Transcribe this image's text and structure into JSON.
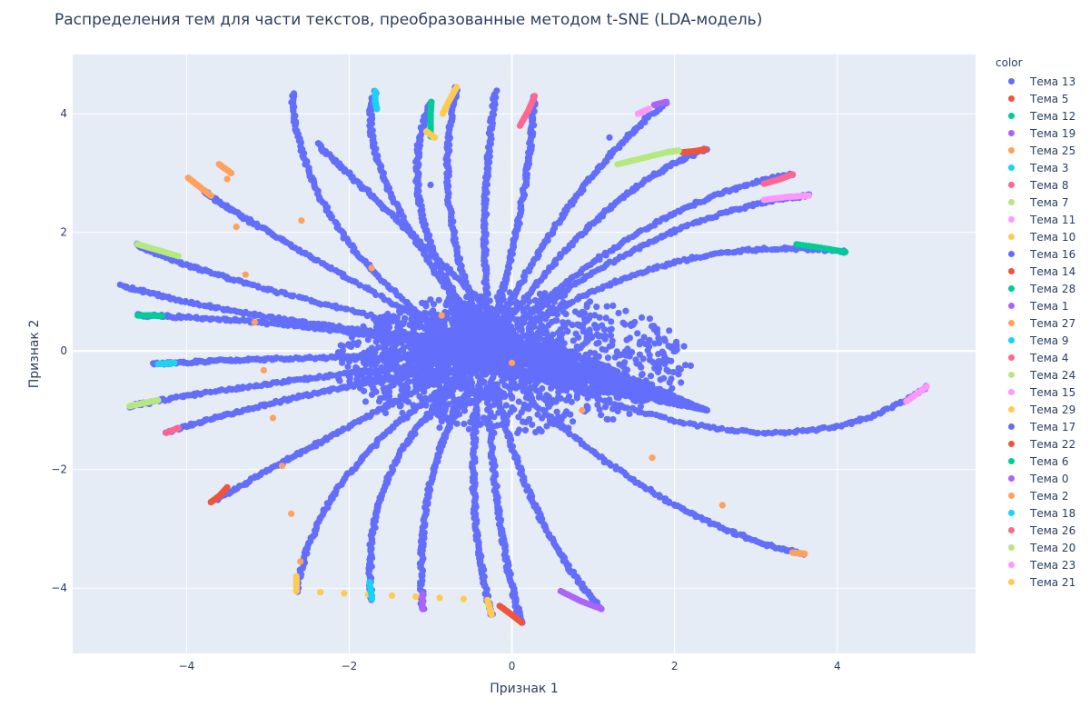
{
  "chart_data": {
    "type": "scatter",
    "title": "Распределения тем для части текстов, преобразованные методом t-SNE (LDA-модель)",
    "xlabel": "Признак 1",
    "ylabel": "Признак 2",
    "xlim": [
      -5.4,
      5.7
    ],
    "ylim": [
      -5.1,
      5.0
    ],
    "x_ticks": [
      -4,
      -2,
      0,
      2,
      4
    ],
    "y_ticks": [
      -4,
      -2,
      0,
      2,
      4
    ],
    "grid": true,
    "legend_title": "color",
    "legend_position": "right",
    "series": [
      {
        "name": "Тема 13",
        "color": "#636efa",
        "description": "dominant cluster: dense core near origin with many radiating arcs"
      },
      {
        "name": "Тема 5",
        "color": "#EF553B",
        "points": [
          [
            2.1,
            3.35
          ],
          [
            2.25,
            3.37
          ],
          [
            2.38,
            3.4
          ]
        ]
      },
      {
        "name": "Тема 12",
        "color": "#00cc96",
        "points": [
          [
            -0.99,
            4.2
          ],
          [
            -1.0,
            4.0
          ],
          [
            -1.0,
            3.8
          ],
          [
            -1.0,
            3.62
          ]
        ]
      },
      {
        "name": "Тема 19",
        "color": "#ab63fa",
        "points": [
          [
            1.75,
            4.15
          ],
          [
            1.9,
            4.2
          ]
        ]
      },
      {
        "name": "Тема 25",
        "color": "#FFA15A",
        "points": [
          [
            -3.98,
            2.92
          ],
          [
            -3.85,
            2.78
          ],
          [
            -3.7,
            2.62
          ]
        ]
      },
      {
        "name": "Тема 3",
        "color": "#19d3f3",
        "points": [
          [
            -1.68,
            4.38
          ],
          [
            -1.68,
            4.2
          ],
          [
            -1.66,
            4.08
          ]
        ]
      },
      {
        "name": "Тема 8",
        "color": "#FF6692",
        "points": [
          [
            0.28,
            4.3
          ],
          [
            0.2,
            4.05
          ],
          [
            0.1,
            3.8
          ]
        ]
      },
      {
        "name": "Тема 7",
        "color": "#B6E880",
        "points": [
          [
            1.3,
            3.15
          ],
          [
            1.6,
            3.25
          ],
          [
            1.9,
            3.35
          ],
          [
            2.05,
            3.38
          ]
        ]
      },
      {
        "name": "Тема 11",
        "color": "#FF97FF",
        "points": [
          [
            1.55,
            4.0
          ],
          [
            1.68,
            4.08
          ]
        ]
      },
      {
        "name": "Тема 10",
        "color": "#FECB52",
        "points": [
          [
            -0.68,
            4.45
          ],
          [
            -0.78,
            4.2
          ],
          [
            -0.85,
            4.0
          ]
        ]
      },
      {
        "name": "Тема 16",
        "color": "#636efa",
        "points": [
          [
            -1.0,
            2.8
          ]
        ]
      },
      {
        "name": "Тема 14",
        "color": "#EF553B",
        "points": [
          [
            -3.7,
            -2.55
          ],
          [
            -3.6,
            -2.45
          ],
          [
            -3.5,
            -2.3
          ]
        ]
      },
      {
        "name": "Тема 28",
        "color": "#00cc96",
        "points": [
          [
            3.5,
            1.8
          ],
          [
            3.8,
            1.74
          ],
          [
            4.1,
            1.67
          ]
        ]
      },
      {
        "name": "Тема 1",
        "color": "#ab63fa",
        "points": [
          [
            0.6,
            -4.05
          ],
          [
            0.85,
            -4.22
          ],
          [
            1.1,
            -4.35
          ]
        ]
      },
      {
        "name": "Тема 27",
        "color": "#FFA15A",
        "points": [
          [
            -3.6,
            3.15
          ],
          [
            -3.45,
            3.0
          ],
          [
            3.45,
            -3.4
          ],
          [
            3.6,
            -3.42
          ]
        ]
      },
      {
        "name": "Тема 9",
        "color": "#19d3f3",
        "points": [
          [
            -4.35,
            -0.22
          ],
          [
            -4.15,
            -0.2
          ]
        ]
      },
      {
        "name": "Тема 4",
        "color": "#FF6692",
        "points": [
          [
            3.1,
            2.82
          ],
          [
            3.3,
            2.9
          ],
          [
            3.45,
            2.98
          ]
        ]
      },
      {
        "name": "Тема 24",
        "color": "#B6E880",
        "points": [
          [
            -4.6,
            1.8
          ],
          [
            -4.35,
            1.7
          ],
          [
            -4.1,
            1.6
          ]
        ]
      },
      {
        "name": "Тема 15",
        "color": "#FF97FF",
        "points": [
          [
            4.85,
            -0.85
          ],
          [
            5.0,
            -0.7
          ],
          [
            5.1,
            -0.6
          ]
        ]
      },
      {
        "name": "Тема 29",
        "color": "#FECB52",
        "points": [
          [
            -2.65,
            -3.8
          ],
          [
            -2.65,
            -4.05
          ],
          [
            -0.3,
            -4.2
          ],
          [
            -0.25,
            -4.45
          ]
        ]
      },
      {
        "name": "Тема 17",
        "color": "#636efa",
        "points": [
          [
            1.2,
            3.6
          ]
        ]
      },
      {
        "name": "Тема 22",
        "color": "#EF553B",
        "points": [
          [
            -0.15,
            -4.3
          ],
          [
            0.0,
            -4.45
          ],
          [
            0.12,
            -4.58
          ]
        ]
      },
      {
        "name": "Тема 6",
        "color": "#00cc96",
        "points": [
          [
            -4.6,
            0.6
          ],
          [
            -4.45,
            0.6
          ],
          [
            -4.3,
            0.59
          ]
        ]
      },
      {
        "name": "Тема 0",
        "color": "#ab63fa",
        "points": [
          [
            -1.1,
            -4.1
          ],
          [
            -1.1,
            -4.35
          ]
        ]
      },
      {
        "name": "Тема 2",
        "color": "#FFA15A",
        "points": [
          [
            -3.5,
            2.9
          ],
          [
            -2.6,
            -3.55
          ]
        ]
      },
      {
        "name": "Тема 18",
        "color": "#19d3f3",
        "points": [
          [
            -1.75,
            -3.9
          ],
          [
            -1.72,
            -4.18
          ]
        ]
      },
      {
        "name": "Тема 26",
        "color": "#FF6692",
        "points": [
          [
            -4.25,
            -1.38
          ],
          [
            -4.1,
            -1.3
          ]
        ]
      },
      {
        "name": "Тема 20",
        "color": "#B6E880",
        "points": [
          [
            -4.7,
            -0.93
          ],
          [
            -4.5,
            -0.87
          ],
          [
            -4.35,
            -0.83
          ]
        ]
      },
      {
        "name": "Тема 23",
        "color": "#FF97FF",
        "points": [
          [
            3.1,
            2.55
          ],
          [
            3.4,
            2.6
          ],
          [
            3.65,
            2.62
          ]
        ]
      },
      {
        "name": "Тема 21",
        "color": "#FECB52",
        "points": [
          [
            -1.05,
            3.7
          ],
          [
            -0.95,
            3.6
          ]
        ]
      }
    ]
  }
}
